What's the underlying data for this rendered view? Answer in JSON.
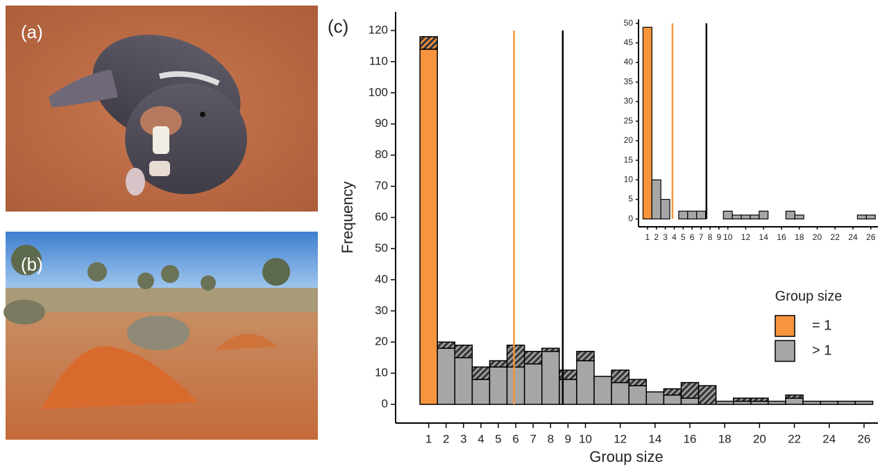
{
  "panels": {
    "a": "(a)",
    "b": "(b)",
    "c": "(c)"
  },
  "chart_data": [
    {
      "type": "bar",
      "xlabel": "Group size",
      "ylabel": "Frequency",
      "x": [
        1,
        2,
        3,
        4,
        5,
        6,
        7,
        8,
        9,
        10,
        11,
        12,
        13,
        14,
        15,
        16,
        17,
        18,
        19,
        20,
        21,
        22,
        23,
        24,
        25,
        26
      ],
      "values": [
        114,
        18,
        15,
        8,
        12,
        12,
        13,
        17,
        8,
        14,
        9,
        7,
        6,
        4,
        3,
        2,
        0,
        1,
        1,
        1,
        1,
        2,
        1,
        1,
        1,
        1
      ],
      "hatched_values": [
        4,
        2,
        4,
        4,
        2,
        7,
        4,
        1,
        3,
        3,
        0,
        4,
        2,
        0,
        2,
        5,
        6,
        0,
        1,
        1,
        0,
        1,
        0,
        0,
        0,
        0
      ],
      "bar_colors": [
        "#f7943e",
        "#a6a6a6",
        "#a6a6a6",
        "#a6a6a6",
        "#a6a6a6",
        "#a6a6a6",
        "#a6a6a6",
        "#a6a6a6",
        "#a6a6a6",
        "#a6a6a6",
        "#a6a6a6",
        "#a6a6a6",
        "#a6a6a6",
        "#a6a6a6",
        "#a6a6a6",
        "#a6a6a6",
        "#a6a6a6",
        "#a6a6a6",
        "#a6a6a6",
        "#a6a6a6",
        "#a6a6a6",
        "#a6a6a6",
        "#a6a6a6",
        "#a6a6a6",
        "#a6a6a6",
        "#a6a6a6"
      ],
      "xlim": [
        -0.9,
        26.8
      ],
      "ylim": [
        -6,
        126
      ],
      "xticks": [
        1,
        2,
        3,
        4,
        5,
        6,
        7,
        8,
        9,
        10,
        12,
        14,
        16,
        18,
        20,
        22,
        24,
        26
      ],
      "yticks": [
        0,
        10,
        20,
        30,
        40,
        50,
        60,
        70,
        80,
        90,
        100,
        110,
        120
      ],
      "reference_lines": [
        {
          "value": 5.9,
          "color": "#f7943e"
        },
        {
          "value": 8.7,
          "color": "#000000"
        }
      ],
      "legend": {
        "title": "Group size",
        "entries": [
          {
            "label": "= 1",
            "color": "#f7943e"
          },
          {
            "label": "> 1",
            "color": "#a6a6a6"
          }
        ]
      }
    },
    {
      "type": "bar",
      "x": [
        1,
        2,
        3,
        4,
        5,
        6,
        7,
        8,
        9,
        10,
        11,
        12,
        13,
        14,
        15,
        16,
        17,
        18,
        19,
        20,
        21,
        22,
        23,
        24,
        25,
        26
      ],
      "values": [
        49,
        10,
        5,
        0,
        2,
        2,
        2,
        0,
        0,
        2,
        1,
        1,
        1,
        2,
        0,
        0,
        2,
        1,
        0,
        0,
        0,
        0,
        0,
        0,
        1,
        1
      ],
      "bar_colors": [
        "#f7943e",
        "#a6a6a6",
        "#a6a6a6",
        "#a6a6a6",
        "#a6a6a6",
        "#a6a6a6",
        "#a6a6a6",
        "#a6a6a6",
        "#a6a6a6",
        "#a6a6a6",
        "#a6a6a6",
        "#a6a6a6",
        "#a6a6a6",
        "#a6a6a6",
        "#a6a6a6",
        "#a6a6a6",
        "#a6a6a6",
        "#a6a6a6",
        "#a6a6a6",
        "#a6a6a6",
        "#a6a6a6",
        "#a6a6a6",
        "#a6a6a6",
        "#a6a6a6",
        "#a6a6a6",
        "#a6a6a6"
      ],
      "xlim": [
        0,
        26.8
      ],
      "ylim": [
        -2,
        51
      ],
      "xticks": [
        1,
        2,
        3,
        4,
        5,
        6,
        7,
        8,
        9,
        10,
        12,
        14,
        16,
        18,
        20,
        22,
        24,
        26
      ],
      "yticks": [
        0,
        5,
        10,
        15,
        20,
        25,
        30,
        35,
        40,
        45,
        50
      ],
      "reference_lines": [
        {
          "value": 3.8,
          "color": "#f7943e"
        },
        {
          "value": 7.6,
          "color": "#000000"
        }
      ]
    }
  ]
}
